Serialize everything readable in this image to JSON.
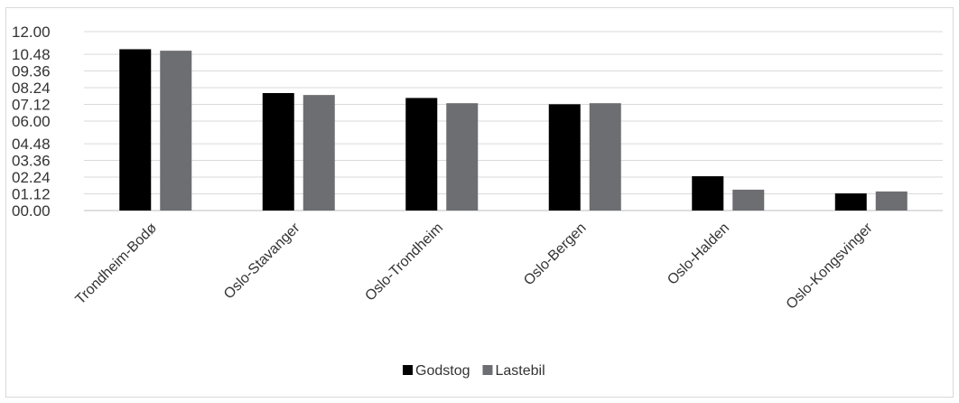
{
  "chart_data": {
    "type": "bar",
    "categories": [
      "Trondheim-Bodø",
      "Oslo-Stavanger",
      "Oslo-Trondheim",
      "Oslo-Bergen",
      "Oslo-Halden",
      "Oslo-Kongsvinger"
    ],
    "series": [
      {
        "name": "Godstog",
        "values": [
          10.82,
          7.88,
          7.55,
          7.13,
          2.3,
          1.15
        ],
        "color": "#000000"
      },
      {
        "name": "Lastebil",
        "values": [
          10.72,
          7.75,
          7.2,
          7.2,
          1.4,
          1.28
        ],
        "color": "#6d6e71"
      }
    ],
    "yticks": [
      "00.00",
      "01.12",
      "02.24",
      "03.36",
      "04.48",
      "06.00",
      "07.12",
      "08.24",
      "09.36",
      "10.48",
      "12.00"
    ],
    "ytick_values": [
      0,
      1.12,
      2.24,
      3.36,
      4.48,
      6.0,
      7.12,
      8.24,
      9.36,
      10.48,
      12.0
    ],
    "ylim": [
      0,
      12
    ],
    "title": "",
    "xlabel": "",
    "ylabel": "",
    "grid": true,
    "legend_position": "bottom"
  }
}
